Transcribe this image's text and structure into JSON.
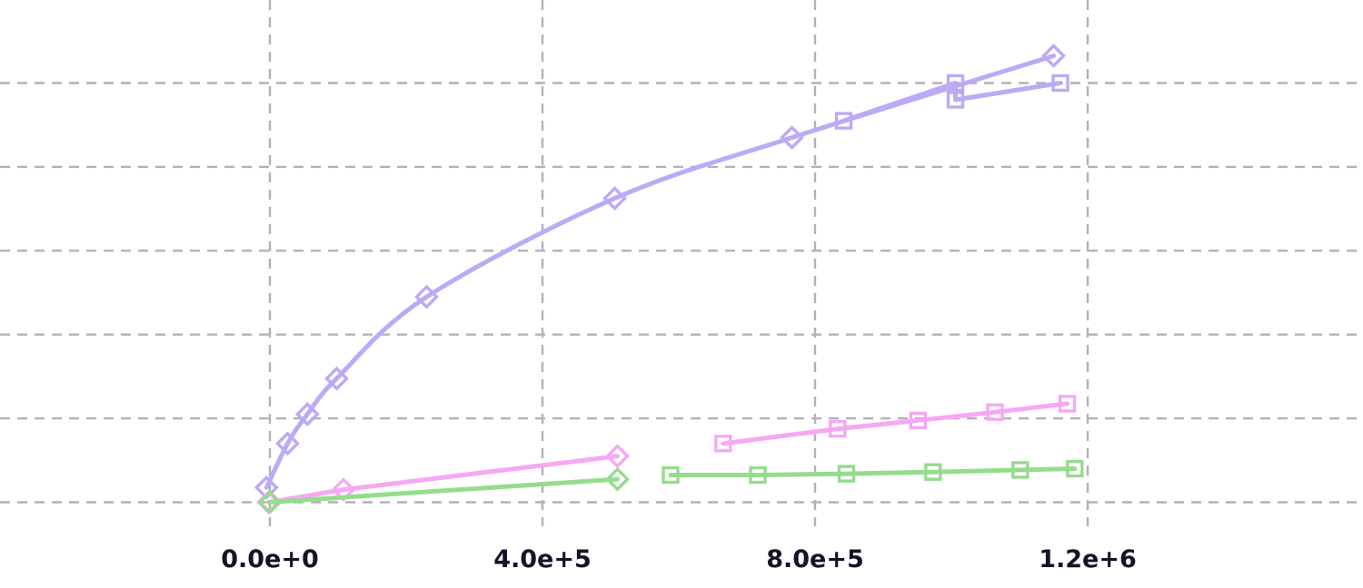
{
  "chart_data": {
    "type": "line",
    "title": "",
    "xlabel": "",
    "ylabel": "",
    "xlim": [
      -1000000,
      2000000
    ],
    "ylim": [
      -0.1,
      1.1
    ],
    "grid": true,
    "x_ticks": [
      {
        "value": 0,
        "label": "0.0e+0"
      },
      {
        "value": 400000,
        "label": "4.0e+5"
      },
      {
        "value": 800000,
        "label": "8.0e+5"
      },
      {
        "value": 1200000,
        "label": "1.2e+6"
      }
    ],
    "y_gridlines": [
      0.0,
      0.2,
      0.4,
      0.6,
      0.8,
      1.0
    ],
    "series": [
      {
        "color": "#bcaaf6",
        "marker": "diamond",
        "points": [
          [
            -5000,
            0.035
          ],
          [
            26000,
            0.14
          ],
          [
            55000,
            0.21
          ],
          [
            98000,
            0.295
          ],
          [
            230000,
            0.49
          ],
          [
            506000,
            0.725
          ],
          [
            766000,
            0.87
          ],
          [
            1150000,
            1.065
          ]
        ]
      },
      {
        "color": "#bcaaf6",
        "marker": "square",
        "points": [
          [
            842000,
            0.91
          ],
          [
            1006000,
            1.0
          ],
          [
            1006000,
            0.96
          ],
          [
            1160000,
            1.0
          ]
        ]
      },
      {
        "color": "#f5a8f5",
        "marker": "diamond",
        "points": [
          [
            -2000,
            0.0
          ],
          [
            108000,
            0.03
          ],
          [
            510000,
            0.11
          ]
        ]
      },
      {
        "color": "#f5a8f5",
        "marker": "square",
        "points": [
          [
            665000,
            0.14
          ],
          [
            833000,
            0.175
          ],
          [
            951000,
            0.195
          ],
          [
            1064000,
            0.215
          ],
          [
            1170000,
            0.235
          ]
        ]
      },
      {
        "color": "#95dc8c",
        "marker": "diamond",
        "points": [
          [
            0,
            0.0
          ],
          [
            510000,
            0.055
          ]
        ]
      },
      {
        "color": "#95dc8c",
        "marker": "square",
        "points": [
          [
            588000,
            0.065
          ],
          [
            716000,
            0.065
          ],
          [
            846000,
            0.068
          ],
          [
            973000,
            0.072
          ],
          [
            1101000,
            0.077
          ],
          [
            1181000,
            0.08
          ]
        ]
      }
    ]
  }
}
